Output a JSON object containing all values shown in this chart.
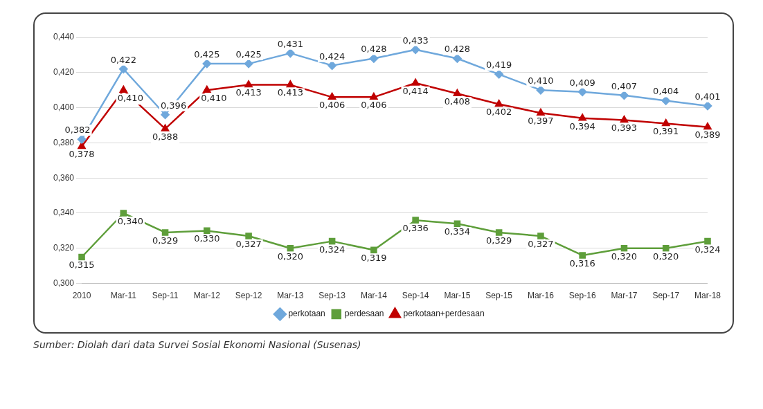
{
  "chart_data": {
    "type": "line",
    "categories": [
      "2010",
      "Mar-11",
      "Sep-11",
      "Mar-12",
      "Sep-12",
      "Mar-13",
      "Sep-13",
      "Mar-14",
      "Sep-14",
      "Mar-15",
      "Sep-15",
      "Mar-16",
      "Sep-16",
      "Mar-17",
      "Sep-17",
      "Mar-18"
    ],
    "series": [
      {
        "name": "perkotaan",
        "color": "#6fa8dc",
        "marker": "diamond",
        "values": [
          0.382,
          0.422,
          0.396,
          0.425,
          0.425,
          0.431,
          0.424,
          0.428,
          0.433,
          0.428,
          0.419,
          0.41,
          0.409,
          0.407,
          0.404,
          0.401
        ],
        "value_labels": [
          "0,382",
          "0,422",
          "0,396",
          "0,425",
          "0,425",
          "0,431",
          "0,424",
          "0,428",
          "0,433",
          "0,428",
          "0,419",
          "0,410",
          "0,409",
          "0,407",
          "0,404",
          "0,401"
        ]
      },
      {
        "name": "perdesaan",
        "color": "#5e9e3a",
        "marker": "square",
        "values": [
          0.315,
          0.34,
          0.329,
          0.33,
          0.327,
          0.32,
          0.324,
          0.319,
          0.336,
          0.334,
          0.329,
          0.327,
          0.316,
          0.32,
          0.32,
          0.324
        ],
        "value_labels": [
          "0,315",
          "0,340",
          "0,329",
          "0,330",
          "0,327",
          "0,320",
          "0,324",
          "0,319",
          "0,336",
          "0,334",
          "0,329",
          "0,327",
          "0,316",
          "0,320",
          "0,320",
          "0,324"
        ]
      },
      {
        "name": "perkotaan+perdesaan",
        "color": "#c00000",
        "marker": "triangle",
        "values": [
          0.378,
          0.41,
          0.388,
          0.41,
          0.413,
          0.413,
          0.406,
          0.406,
          0.414,
          0.408,
          0.402,
          0.397,
          0.394,
          0.393,
          0.391,
          0.389
        ],
        "value_labels": [
          "0,378",
          "0,410",
          "0,388",
          "0,410",
          "0,413",
          "0,413",
          "0,406",
          "0,406",
          "0,414",
          "0,408",
          "0,402",
          "0,397",
          "0,394",
          "0,393",
          "0,391",
          "0,389"
        ]
      }
    ],
    "ylim": [
      0.3,
      0.44
    ],
    "yticks": [
      {
        "value": 0.3,
        "label": "0,300"
      },
      {
        "value": 0.32,
        "label": "0,320"
      },
      {
        "value": 0.34,
        "label": "0,340"
      },
      {
        "value": 0.36,
        "label": "0,360"
      },
      {
        "value": 0.38,
        "label": "0,380"
      },
      {
        "value": 0.4,
        "label": "0,400"
      },
      {
        "value": 0.42,
        "label": "0,420"
      },
      {
        "value": 0.44,
        "label": "0,440"
      }
    ],
    "grid": "y",
    "legend": "bottom",
    "line_style": "solid",
    "annotations": [
      "Sumber: Diolah dari data Survei Sosial Ekonomi Nasional (Susenas)"
    ]
  }
}
